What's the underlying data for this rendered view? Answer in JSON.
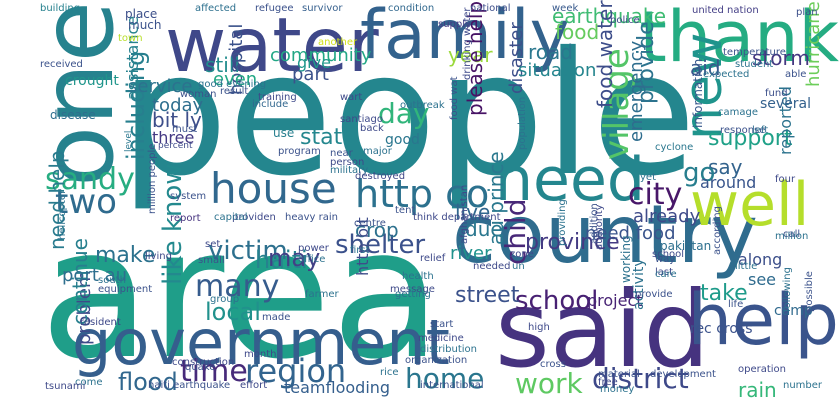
{
  "words": [
    {
      "text": "people",
      "color": "#24868e"
    },
    {
      "text": "area",
      "color": "#1f9e89"
    },
    {
      "text": "one",
      "color": "#26828e"
    },
    {
      "text": "said",
      "color": "#46337f"
    },
    {
      "text": "country",
      "color": "#2f6c8e"
    },
    {
      "text": "water",
      "color": "#3f4889"
    },
    {
      "text": "family",
      "color": "#33628d"
    },
    {
      "text": "government",
      "color": "#355e8d"
    },
    {
      "text": "thank",
      "color": "#25ac82"
    },
    {
      "text": "need",
      "color": "#24868e"
    },
    {
      "text": "well",
      "color": "#b5de2b"
    },
    {
      "text": "house",
      "color": "#31688e"
    },
    {
      "text": "help",
      "color": "#3a548c"
    },
    {
      "text": "new",
      "color": "#1f948c"
    },
    {
      "text": "http co",
      "color": "#2c718e"
    },
    {
      "text": "like know",
      "color": "#23898e"
    },
    {
      "text": "including",
      "color": "#277f8e"
    },
    {
      "text": "time",
      "color": "#472a7a"
    },
    {
      "text": "region",
      "color": "#32648e"
    },
    {
      "text": "district",
      "color": "#3e4989"
    },
    {
      "text": "school",
      "color": "#482173"
    },
    {
      "text": "work",
      "color": "#5ec962"
    },
    {
      "text": "many",
      "color": "#365c8d"
    },
    {
      "text": "sandy",
      "color": "#27ad81"
    },
    {
      "text": "two",
      "color": "#2f6b8e"
    },
    {
      "text": "day",
      "color": "#31b57b"
    },
    {
      "text": "village",
      "color": "#54c568"
    },
    {
      "text": "city",
      "color": "#481769"
    },
    {
      "text": "home",
      "color": "#2a768e"
    },
    {
      "text": "flood",
      "color": "#31678e"
    },
    {
      "text": "earthquake",
      "color": "#3fbc73"
    },
    {
      "text": "food",
      "color": "#65cb5e"
    },
    {
      "text": "shelter",
      "color": "#3b518b"
    },
    {
      "text": "victim",
      "color": "#2d708e"
    },
    {
      "text": "haiti",
      "color": "#26828e"
    },
    {
      "text": "local",
      "color": "#21918c"
    },
    {
      "text": "make",
      "color": "#2c728e"
    },
    {
      "text": "may",
      "color": "#424086"
    },
    {
      "text": "problem",
      "color": "#3e4a89"
    },
    {
      "text": "child",
      "color": "#482878"
    },
    {
      "text": "street",
      "color": "#3b528b"
    },
    {
      "text": "province",
      "color": "#443a83"
    },
    {
      "text": "support",
      "color": "#1fa188"
    },
    {
      "text": "say",
      "color": "#33638d"
    },
    {
      "text": "take",
      "color": "#1e9b8a"
    },
    {
      "text": "go",
      "color": "#277e8e"
    },
    {
      "text": "rain",
      "color": "#35b779"
    },
    {
      "text": "storm",
      "color": "#453781"
    },
    {
      "text": "aid",
      "color": "#38588c"
    },
    {
      "text": "road",
      "color": "#2a778e"
    },
    {
      "text": "community",
      "color": "#22a785"
    },
    {
      "text": "service",
      "color": "#2c728e"
    },
    {
      "text": "still",
      "color": "#228c8d"
    },
    {
      "text": "year",
      "color": "#9bd93c"
    },
    {
      "text": "state",
      "color": "#24878e"
    },
    {
      "text": "crop",
      "color": "#2d718e"
    },
    {
      "text": "live",
      "color": "#31668e"
    },
    {
      "text": "due",
      "color": "#2a778e"
    },
    {
      "text": "river",
      "color": "#20928c"
    },
    {
      "text": "provide",
      "color": "#2c738e"
    },
    {
      "text": "please help",
      "color": "#471365"
    },
    {
      "text": "food water",
      "color": "#3d4d8a"
    },
    {
      "text": "disaster",
      "color": "#3c4f8a"
    },
    {
      "text": "hospital",
      "color": "#3b528b"
    },
    {
      "text": "assistance",
      "color": "#26828e"
    },
    {
      "text": "bit ly",
      "color": "#3d4e8a"
    },
    {
      "text": "today",
      "color": "#2e6e8e"
    },
    {
      "text": "even",
      "color": "#22a884"
    },
    {
      "text": "part",
      "color": "#3b528b"
    },
    {
      "text": "give",
      "color": "#1f988b"
    },
    {
      "text": "situation",
      "color": "#25858e"
    },
    {
      "text": "reported",
      "color": "#2c738e"
    },
    {
      "text": "hurricane",
      "color": "#6ccd5a"
    },
    {
      "text": "around",
      "color": "#39558c"
    },
    {
      "text": "need food",
      "color": "#3a548c"
    },
    {
      "text": "already",
      "color": "#3e4a89"
    },
    {
      "text": "project",
      "color": "#482475"
    },
    {
      "text": "continue",
      "color": "#277f8e"
    },
    {
      "text": "port au",
      "color": "#2e6f8e"
    },
    {
      "text": "need help",
      "color": "#297b8e"
    },
    {
      "text": "au prince",
      "color": "#2a788e"
    },
    {
      "text": "http bit",
      "color": "#3e4c8a"
    },
    {
      "text": "teamflooding",
      "color": "#355f8d"
    },
    {
      "text": "pakistan",
      "color": "#2d708e"
    },
    {
      "text": "emergency",
      "color": "#2e6d8e"
    },
    {
      "text": "several",
      "color": "#34618d"
    },
    {
      "text": "camp",
      "color": "#306a8e"
    },
    {
      "text": "rec cross",
      "color": "#3b528b"
    },
    {
      "text": "crought",
      "color": "#1f958b"
    },
    {
      "text": "three",
      "color": "#443983"
    },
    {
      "text": "good",
      "color": "#2a768e"
    },
    {
      "text": "along",
      "color": "#3c4f8a"
    },
    {
      "text": "see",
      "color": "#2f6b8e"
    },
    {
      "text": "information",
      "color": "#38588c"
    },
    {
      "text": "cyclone",
      "color": "#2a778e"
    },
    {
      "text": "report",
      "color": "#46337f"
    },
    {
      "text": "use",
      "color": "#277f8e"
    },
    {
      "text": "near",
      "color": "#3b528b"
    },
    {
      "text": "person",
      "color": "#3e4989"
    },
    {
      "text": "military",
      "color": "#2c728e"
    },
    {
      "text": "destroyed",
      "color": "#3f4788"
    },
    {
      "text": "supply",
      "color": "#443b84"
    },
    {
      "text": "place",
      "color": "#3c4f8a"
    },
    {
      "text": "much",
      "color": "#3b528b"
    },
    {
      "text": "town",
      "color": "#b8de29"
    },
    {
      "text": "another",
      "color": "#d2e21b"
    },
    {
      "text": "national",
      "color": "#3d4e8a"
    },
    {
      "text": "united nation",
      "color": "#433e85"
    },
    {
      "text": "affected",
      "color": "#2d708e"
    },
    {
      "text": "refugee",
      "color": "#3b518b"
    },
    {
      "text": "survivor",
      "color": "#355f8d"
    },
    {
      "text": "condition",
      "color": "#31688e"
    },
    {
      "text": "week",
      "color": "#38598c"
    },
    {
      "text": "building",
      "color": "#26818e"
    },
    {
      "text": "received",
      "color": "#3b528b"
    },
    {
      "text": "plan",
      "color": "#3c4f8a"
    },
    {
      "text": "police",
      "color": "#3f4788"
    },
    {
      "text": "disease",
      "color": "#2e6e8e"
    },
    {
      "text": "student",
      "color": "#2c728e"
    },
    {
      "text": "fund",
      "color": "#3c4f8a"
    },
    {
      "text": "level",
      "color": "#2a778e"
    },
    {
      "text": "must",
      "color": "#3b528b"
    },
    {
      "text": "santiago",
      "color": "#3e4989"
    },
    {
      "text": "food wat",
      "color": "#3b528b"
    },
    {
      "text": "population",
      "color": "#2c728e"
    },
    {
      "text": "include",
      "color": "#31678e"
    },
    {
      "text": "result",
      "color": "#3b528b"
    },
    {
      "text": "wart",
      "color": "#3e4989"
    },
    {
      "text": "expected",
      "color": "#2c728e"
    },
    {
      "text": "percent",
      "color": "#3e4a89"
    },
    {
      "text": "response",
      "color": "#3b528b"
    },
    {
      "text": "left",
      "color": "#2e6d8e"
    },
    {
      "text": "system",
      "color": "#3b528b"
    },
    {
      "text": "yet",
      "color": "#2c728e"
    },
    {
      "text": "four",
      "color": "#3e4989"
    },
    {
      "text": "million",
      "color": "#2c728e"
    },
    {
      "text": "call",
      "color": "#3b528b"
    },
    {
      "text": "zone",
      "color": "#3e4989"
    },
    {
      "text": "un",
      "color": "#2c728e"
    },
    {
      "text": "way",
      "color": "#3b528b"
    },
    {
      "text": "last",
      "color": "#3e4989"
    },
    {
      "text": "little",
      "color": "#2c728e"
    },
    {
      "text": "according",
      "color": "#3b528b"
    },
    {
      "text": "needed",
      "color": "#3e4989"
    },
    {
      "text": "care",
      "color": "#2c728e"
    },
    {
      "text": "life",
      "color": "#3b528b"
    },
    {
      "text": "message",
      "color": "#3e4a89"
    },
    {
      "text": "getting",
      "color": "#2c728e"
    },
    {
      "text": "start",
      "color": "#3b528b"
    },
    {
      "text": "power",
      "color": "#3e4989"
    },
    {
      "text": "office",
      "color": "#2c728e"
    },
    {
      "text": "small",
      "color": "#3b528b"
    },
    {
      "text": "living",
      "color": "#3e4989"
    },
    {
      "text": "south",
      "color": "#2c728e"
    },
    {
      "text": "equipment",
      "color": "#3b528b"
    },
    {
      "text": "resident",
      "color": "#3e4989"
    },
    {
      "text": "come",
      "color": "#2c728e"
    },
    {
      "text": "haiti earthquake",
      "color": "#3b528b"
    },
    {
      "text": "effort",
      "color": "#3e4989"
    },
    {
      "text": "rice",
      "color": "#2c728e"
    },
    {
      "text": "international",
      "color": "#3b528b"
    },
    {
      "text": "operation",
      "color": "#3e4989"
    },
    {
      "text": "number",
      "color": "#2c728e"
    },
    {
      "text": "quake",
      "color": "#3b528b"
    },
    {
      "text": "high",
      "color": "#3e4989"
    },
    {
      "text": "working",
      "color": "#2c728e"
    },
    {
      "text": "made",
      "color": "#3b528b"
    },
    {
      "text": "month",
      "color": "#3e4989"
    },
    {
      "text": "following",
      "color": "#2c728e"
    },
    {
      "text": "possible",
      "color": "#3b528b"
    },
    {
      "text": "tsunami",
      "color": "#3e4989"
    },
    {
      "text": "first",
      "color": "#2c728e"
    },
    {
      "text": "tent",
      "color": "#3b528b"
    },
    {
      "text": "set",
      "color": "#3e4989"
    },
    {
      "text": "group",
      "color": "#2c728e"
    },
    {
      "text": "organization",
      "color": "#3b528b"
    },
    {
      "text": "medicine",
      "color": "#3e4989"
    },
    {
      "text": "health",
      "color": "#2c728e"
    },
    {
      "text": "cross",
      "color": "#3b528b"
    },
    {
      "text": "construction",
      "color": "#3e4989"
    },
    {
      "text": "farmer",
      "color": "#2c728e"
    },
    {
      "text": "centre",
      "color": "#3b528b"
    },
    {
      "text": "afghanistan",
      "color": "#3e4989"
    },
    {
      "text": "providing",
      "color": "#2c728e"
    },
    {
      "text": "addition",
      "color": "#3b528b"
    },
    {
      "text": "authority",
      "color": "#3e4989"
    },
    {
      "text": "activity",
      "color": "#2c728e"
    },
    {
      "text": "provide",
      "color": "#3b528b"
    },
    {
      "text": "relief",
      "color": "#3e4989"
    },
    {
      "text": "camage",
      "color": "#2c728e"
    },
    {
      "text": "able",
      "color": "#3b528b"
    },
    {
      "text": "school",
      "color": "#3e4989"
    },
    {
      "text": "distribution",
      "color": "#2c728e"
    },
    {
      "text": "heavy rain",
      "color": "#3b528b"
    },
    {
      "text": "providen",
      "color": "#3e4989"
    },
    {
      "text": "capital",
      "color": "#2c728e"
    },
    {
      "text": "million people",
      "color": "#3b528b"
    },
    {
      "text": "back",
      "color": "#3e4989"
    },
    {
      "text": "major",
      "color": "#2c728e"
    },
    {
      "text": "program",
      "color": "#3b528b"
    },
    {
      "text": "training",
      "color": "#3e4989"
    },
    {
      "text": "good evening",
      "color": "#2c728e"
    },
    {
      "text": "woman",
      "color": "#3b528b"
    },
    {
      "text": "drinking water",
      "color": "#3e4989"
    },
    {
      "text": "outbreak",
      "color": "#2c728e"
    },
    {
      "text": "temperature",
      "color": "#3b528b"
    },
    {
      "text": "think department",
      "color": "#3e4989"
    },
    {
      "text": "helicopter",
      "color": "#2c728e"
    },
    {
      "text": "material",
      "color": "#3b528b"
    },
    {
      "text": "free",
      "color": "#3e4989"
    },
    {
      "text": "money",
      "color": "#2c728e"
    },
    {
      "text": "development",
      "color": "#3b528b"
    }
  ]
}
